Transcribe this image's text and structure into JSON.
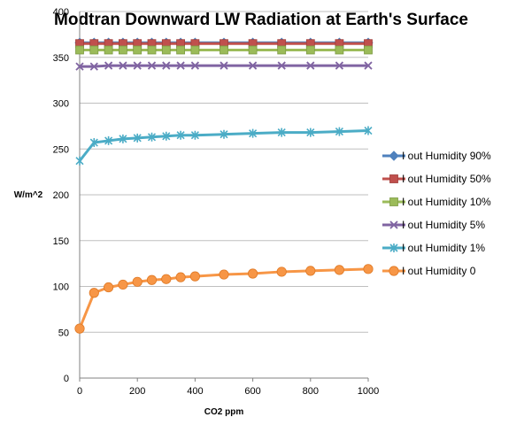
{
  "chart_data": {
    "type": "line",
    "title": "Modtran Downward LW Radiation at Earth's Surface",
    "xlabel": "CO2 ppm",
    "ylabel": "W/m^2",
    "xlim": [
      0,
      1000
    ],
    "ylim": [
      0,
      400
    ],
    "x_ticks": [
      0,
      200,
      400,
      600,
      800,
      1000
    ],
    "y_ticks": [
      0,
      50,
      100,
      150,
      200,
      250,
      300,
      350,
      400
    ],
    "grid": "horizontal",
    "legend_position": "right",
    "x": [
      0,
      50,
      100,
      150,
      200,
      250,
      300,
      350,
      400,
      500,
      600,
      700,
      800,
      900,
      1000
    ],
    "series": [
      {
        "name": "I out Humidity 90%",
        "color": "#4f81bd",
        "marker": "diamond",
        "values": [
          366,
          366,
          366,
          366,
          366,
          366,
          366,
          366,
          366,
          366,
          366,
          366,
          366,
          366,
          366
        ]
      },
      {
        "name": "I out Humidity 50%",
        "color": "#c0504d",
        "marker": "square",
        "values": [
          365,
          365,
          365,
          365,
          365,
          365,
          365,
          365,
          365,
          365,
          365,
          365,
          365,
          365,
          365
        ]
      },
      {
        "name": "I out Humidity 10%",
        "color": "#9bbb59",
        "marker": "triangle",
        "values": [
          358,
          358,
          358,
          358,
          358,
          358,
          358,
          358,
          358,
          358,
          358,
          358,
          358,
          358,
          358
        ]
      },
      {
        "name": "I out Humidity 5%",
        "color": "#8064a2",
        "marker": "x",
        "values": [
          340,
          340,
          341,
          341,
          341,
          341,
          341,
          341,
          341,
          341,
          341,
          341,
          341,
          341,
          341
        ]
      },
      {
        "name": "I out Humidity 1%",
        "color": "#4bacc6",
        "marker": "star",
        "values": [
          237,
          257,
          259,
          261,
          262,
          263,
          264,
          265,
          265,
          266,
          267,
          268,
          268,
          269,
          270
        ]
      },
      {
        "name": "I out Humidity 0",
        "color": "#f79646",
        "marker": "circle",
        "values": [
          54,
          93,
          99,
          102,
          105,
          107,
          108,
          110,
          111,
          113,
          114,
          116,
          117,
          118,
          119
        ]
      }
    ]
  }
}
